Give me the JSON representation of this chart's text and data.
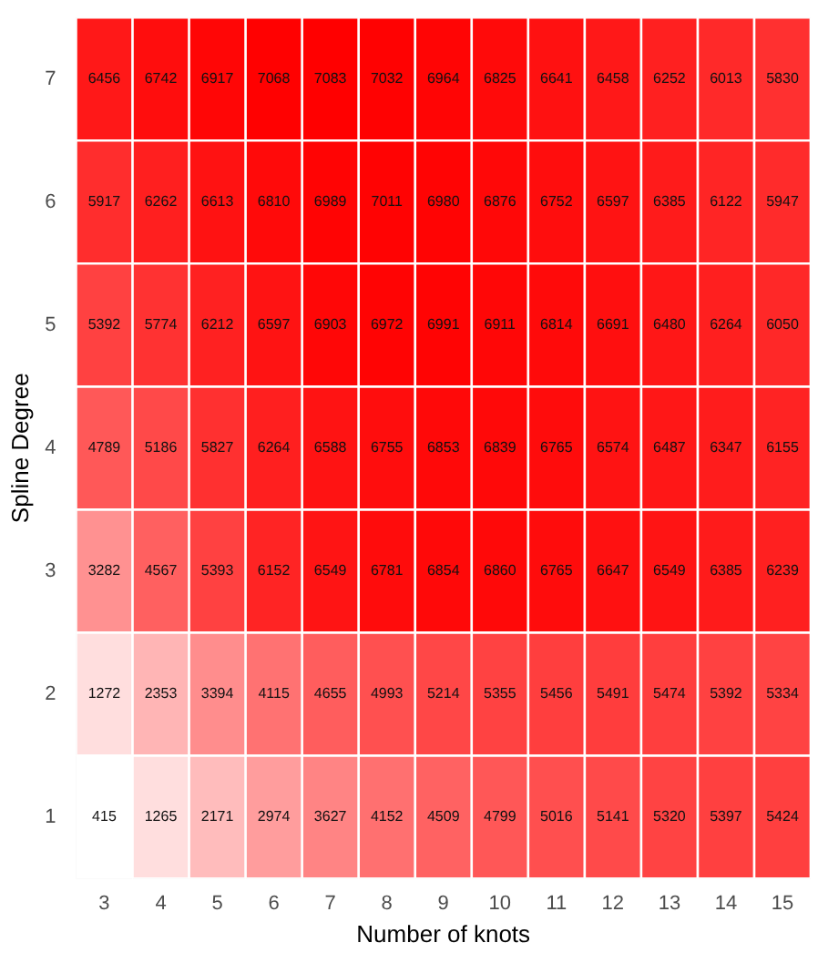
{
  "chart_data": {
    "type": "heatmap",
    "xlabel": "Number of knots",
    "ylabel": "Spline Degree",
    "data_labels": true,
    "categories": [
      "3",
      "4",
      "5",
      "6",
      "7",
      "8",
      "9",
      "10",
      "11",
      "12",
      "13",
      "14",
      "15"
    ],
    "y_categories": [
      "7",
      "6",
      "5",
      "4",
      "3",
      "2",
      "1"
    ],
    "cells": [
      [
        6456,
        6742,
        6917,
        7068,
        7083,
        7032,
        6964,
        6825,
        6641,
        6458,
        6252,
        6013,
        5830
      ],
      [
        5917,
        6262,
        6613,
        6810,
        6989,
        7011,
        6980,
        6876,
        6752,
        6597,
        6385,
        6122,
        5947
      ],
      [
        5392,
        5774,
        6212,
        6597,
        6903,
        6972,
        6991,
        6911,
        6814,
        6691,
        6480,
        6264,
        6050
      ],
      [
        4789,
        5186,
        5827,
        6264,
        6588,
        6755,
        6853,
        6839,
        6765,
        6574,
        6487,
        6347,
        6155
      ],
      [
        3282,
        4567,
        5393,
        6152,
        6549,
        6781,
        6854,
        6860,
        6765,
        6647,
        6549,
        6385,
        6239
      ],
      [
        1272,
        2353,
        3394,
        4115,
        4655,
        4993,
        5214,
        5355,
        5456,
        5491,
        5474,
        5392,
        5334
      ],
      [
        415,
        1265,
        2171,
        2974,
        3627,
        4152,
        4509,
        4799,
        5016,
        5141,
        5320,
        5397,
        5424
      ]
    ]
  }
}
